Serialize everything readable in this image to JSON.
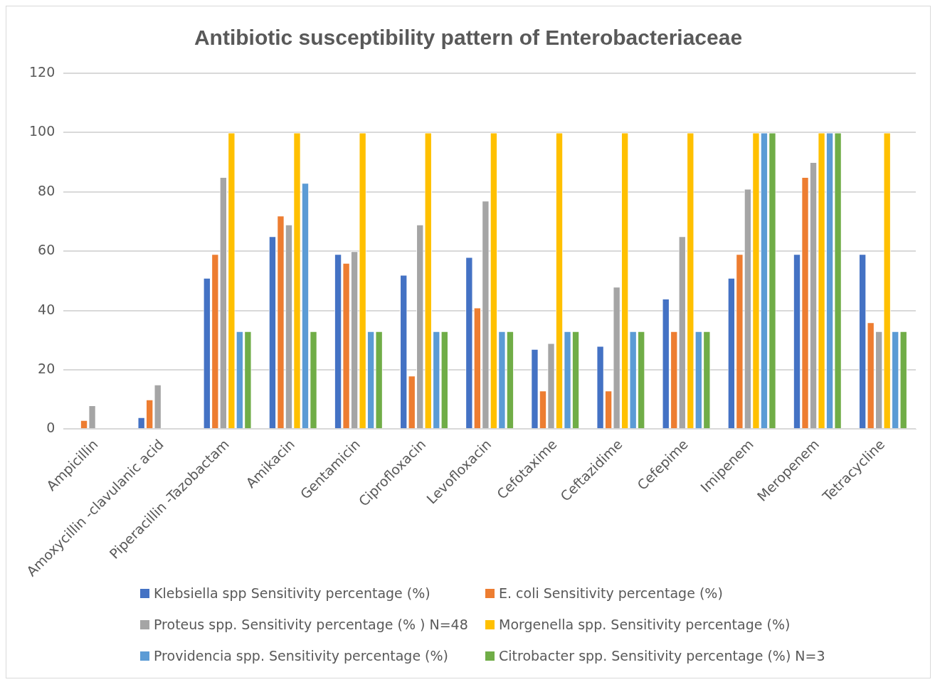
{
  "chart_data": {
    "type": "bar",
    "title": "Antibiotic susceptibility pattern of Enterobacteriaceae",
    "categories": [
      "Ampicillin",
      "Amoxycillin -clavulanic acid",
      "Piperacillin -Tazobactam",
      "Amikacin",
      "Gentamicin",
      "Ciprofloxacin",
      "Levofloxacin",
      "Cefotaxime",
      "Ceftazidime",
      "Cefepime",
      "Imipenem",
      "Meropenem",
      "Tetracycline"
    ],
    "series": [
      {
        "name": "Klebsiella spp Sensitivity percentage (%)",
        "color": "#4472c4",
        "values": [
          0,
          4,
          51,
          65,
          59,
          52,
          58,
          27,
          28,
          44,
          51,
          59,
          59
        ]
      },
      {
        "name": "E. coli Sensitivity percentage (%)",
        "color": "#ed7d31",
        "values": [
          3,
          10,
          59,
          72,
          56,
          18,
          41,
          13,
          13,
          33,
          59,
          85,
          36
        ]
      },
      {
        "name": "Proteus spp. Sensitivity percentage (% ) N=48",
        "color": "#a5a5a5",
        "values": [
          8,
          15,
          85,
          69,
          60,
          69,
          77,
          29,
          48,
          65,
          81,
          90,
          33
        ]
      },
      {
        "name": "Morgenella spp. Sensitivity percentage (%)",
        "color": "#ffc000",
        "values": [
          0,
          0,
          100,
          100,
          100,
          100,
          100,
          100,
          100,
          100,
          100,
          100,
          100
        ]
      },
      {
        "name": "Providencia spp. Sensitivity percentage (%)",
        "color": "#5b9bd5",
        "values": [
          0,
          0,
          33,
          83,
          33,
          33,
          33,
          33,
          33,
          33,
          100,
          100,
          33
        ]
      },
      {
        "name": "Citrobacter spp. Sensitivity percentage (%) N=3",
        "color": "#70ad47",
        "values": [
          0,
          0,
          33,
          33,
          33,
          33,
          33,
          33,
          33,
          33,
          100,
          100,
          33
        ]
      }
    ],
    "ylim": [
      0,
      120
    ],
    "yticks": [
      0,
      20,
      40,
      60,
      80,
      100,
      120
    ],
    "grid": "y",
    "legend": "bottom"
  }
}
